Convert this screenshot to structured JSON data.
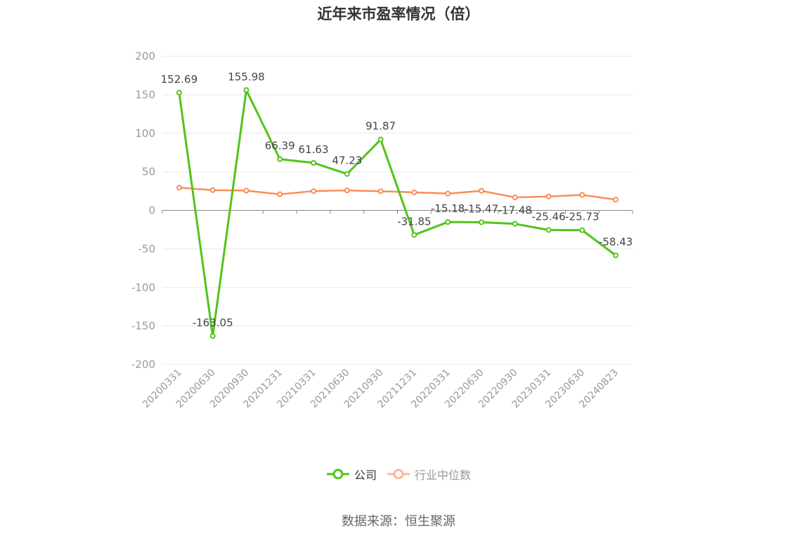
{
  "title": "近年来市盈率情况（倍）",
  "source": "数据来源：恒生聚源",
  "colors": {
    "company": "#52c41a",
    "industry": "#fa8c5a",
    "industry_legend": "#f8b89c",
    "grid": "#e6e8f0",
    "axis": "#999999",
    "zero_line": "#888888"
  },
  "chart_data": {
    "type": "line",
    "title": "近年来市盈率情况（倍）",
    "categories": [
      "20200331",
      "20200630",
      "20200930",
      "20201231",
      "20210331",
      "20210630",
      "20210930",
      "20211231",
      "20220331",
      "20220630",
      "20220930",
      "20230331",
      "20230630",
      "20240823"
    ],
    "ylim": [
      -200,
      200
    ],
    "yticks": [
      200,
      150,
      100,
      50,
      0,
      -50,
      -100,
      -150,
      -200
    ],
    "grid": true,
    "legend_position": "bottom",
    "series": [
      {
        "name": "公司",
        "color": "#52c41a",
        "show_labels": true,
        "values": [
          152.69,
          -163.05,
          155.98,
          66.39,
          61.63,
          47.23,
          91.87,
          -31.85,
          -15.18,
          -15.47,
          -17.48,
          -25.46,
          -25.73,
          -58.43
        ],
        "labels": [
          "152.69",
          "-163.05",
          "155.98",
          "66.39",
          "61.63",
          "47.23",
          "91.87",
          "-31.85",
          "-15.18",
          "-15.47",
          "-17.48",
          "-25.46",
          "-25.73",
          "-58.43"
        ]
      },
      {
        "name": "行业中位数",
        "color": "#fa8c5a",
        "show_labels": false,
        "values": [
          29.5,
          26.2,
          25.6,
          20.8,
          25.0,
          25.8,
          24.8,
          23.3,
          21.8,
          25.3,
          16.8,
          18.0,
          20.0,
          13.9
        ]
      }
    ]
  },
  "legend": {
    "items": [
      {
        "label": "公司",
        "icon": "circle-line-icon",
        "active": true
      },
      {
        "label": "行业中位数",
        "icon": "circle-line-icon",
        "active": false
      }
    ]
  }
}
